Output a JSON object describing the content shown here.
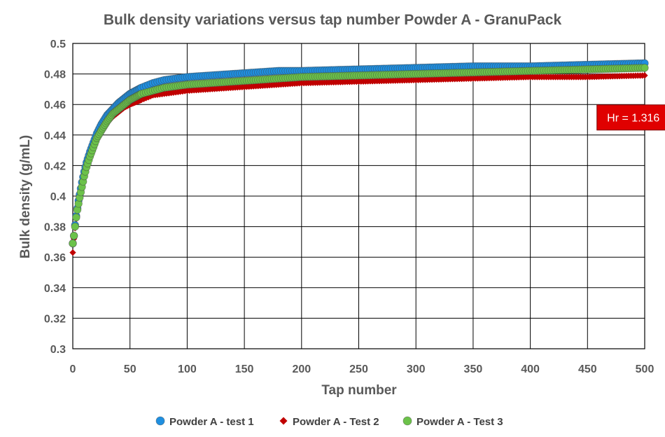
{
  "chart_data": {
    "type": "scatter",
    "title": "Bulk density variations versus tap number Powder A - GranuPack",
    "xlabel": "Tap number",
    "ylabel": "Bulk density (g/mL)",
    "xlim": [
      0,
      500
    ],
    "ylim": [
      0.3,
      0.5
    ],
    "x_ticks": [
      "0",
      "50",
      "100",
      "150",
      "200",
      "250",
      "300",
      "350",
      "400",
      "450",
      "500"
    ],
    "y_ticks": [
      "0.3",
      "0.32",
      "0.34",
      "0.36",
      "0.38",
      "0.4",
      "0.42",
      "0.44",
      "0.46",
      "0.48",
      "0.5"
    ],
    "grid": true,
    "legend_position": "bottom",
    "annotation": {
      "text": "Hr = 1.316",
      "x": 487,
      "y": 0.4515,
      "color": "#e00000"
    },
    "series": [
      {
        "name": "Powder A - test 1",
        "marker": "circle",
        "color": "#1f8fe0",
        "x": [
          0,
          1,
          2,
          3,
          4,
          5,
          6,
          8,
          10,
          12,
          15,
          18,
          21,
          25,
          30,
          35,
          40,
          45,
          50,
          60,
          70,
          80,
          90,
          100,
          120,
          140,
          160,
          180,
          200,
          250,
          300,
          350,
          400,
          450,
          500
        ],
        "y": [
          0.369,
          0.374,
          0.381,
          0.387,
          0.392,
          0.397,
          0.401,
          0.409,
          0.416,
          0.422,
          0.429,
          0.435,
          0.441,
          0.447,
          0.453,
          0.457,
          0.461,
          0.464,
          0.467,
          0.471,
          0.474,
          0.476,
          0.477,
          0.478,
          0.479,
          0.48,
          0.481,
          0.482,
          0.482,
          0.483,
          0.484,
          0.485,
          0.485,
          0.486,
          0.487
        ]
      },
      {
        "name": "Powder A - Test 2",
        "marker": "diamond",
        "color": "#c00000",
        "x": [
          0,
          1,
          2,
          3,
          4,
          5,
          6,
          8,
          10,
          12,
          15,
          18,
          21,
          25,
          30,
          35,
          40,
          45,
          50,
          60,
          70,
          80,
          90,
          100,
          120,
          140,
          160,
          180,
          200,
          250,
          300,
          350,
          400,
          450,
          500
        ],
        "y": [
          0.363,
          0.372,
          0.379,
          0.385,
          0.39,
          0.395,
          0.399,
          0.407,
          0.414,
          0.42,
          0.427,
          0.433,
          0.438,
          0.443,
          0.448,
          0.452,
          0.455,
          0.458,
          0.46,
          0.463,
          0.466,
          0.467,
          0.468,
          0.469,
          0.47,
          0.471,
          0.472,
          0.473,
          0.474,
          0.475,
          0.476,
          0.477,
          0.478,
          0.478,
          0.479
        ]
      },
      {
        "name": "Powder A - Test 3",
        "marker": "circle",
        "color": "#6cc24a",
        "x": [
          0,
          1,
          2,
          3,
          4,
          5,
          6,
          8,
          10,
          12,
          15,
          18,
          21,
          25,
          30,
          35,
          40,
          45,
          50,
          60,
          70,
          80,
          90,
          100,
          120,
          140,
          160,
          180,
          200,
          250,
          300,
          350,
          400,
          450,
          500
        ],
        "y": [
          0.369,
          0.374,
          0.38,
          0.386,
          0.391,
          0.395,
          0.399,
          0.406,
          0.413,
          0.419,
          0.426,
          0.432,
          0.438,
          0.443,
          0.449,
          0.454,
          0.457,
          0.46,
          0.463,
          0.467,
          0.469,
          0.471,
          0.472,
          0.473,
          0.474,
          0.475,
          0.476,
          0.477,
          0.478,
          0.479,
          0.48,
          0.481,
          0.482,
          0.483,
          0.484
        ]
      }
    ]
  }
}
